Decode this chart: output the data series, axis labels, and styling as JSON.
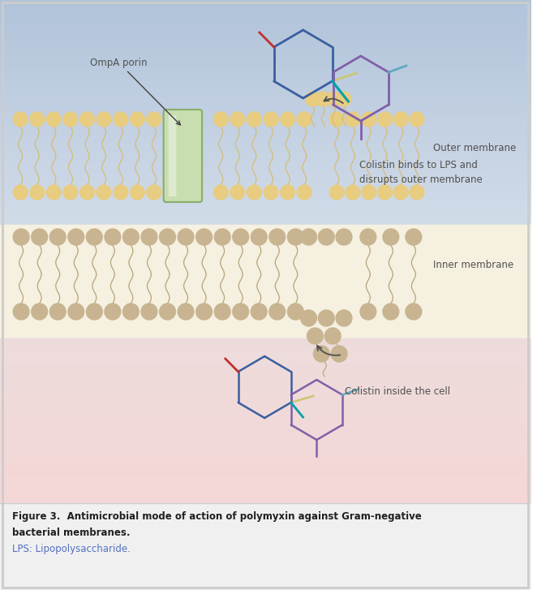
{
  "fig_width": 6.62,
  "fig_height": 7.27,
  "dpi": 100,
  "caption_text1": "Figure 3.  Antimicrobial mode of action of polymyxin against Gram-negative",
  "caption_text2": "bacterial membranes.",
  "caption_text3": "LPS: Lipopolysaccharide.",
  "label_ompa": "OmpA porin",
  "label_colistin_top": "Colistin binds to LPS and\ndisrupts outer membrane",
  "label_colistin_bottom": "Colistin inside the cell",
  "label_outer": "Outer membrane",
  "label_inner": "Inner membrane",
  "bead_color_outer": "#e8cc80",
  "bead_color_inner": "#c8b490",
  "wave_color_outer": "#d4be78",
  "wave_color_inner": "#b8a478",
  "porin_color_light": "#c8ddb0",
  "porin_color_dark": "#8aad6a",
  "molecule_blue": "#3a5fa0",
  "molecule_purple": "#8060a8",
  "molecule_teal": "#00a0a8",
  "molecule_red": "#c03030",
  "molecule_yellow": "#c8c870",
  "molecule_light_blue": "#60a8c0",
  "text_color": "#505050",
  "caption_bold_color": "#202020",
  "caption_lps_color": "#5070c0"
}
